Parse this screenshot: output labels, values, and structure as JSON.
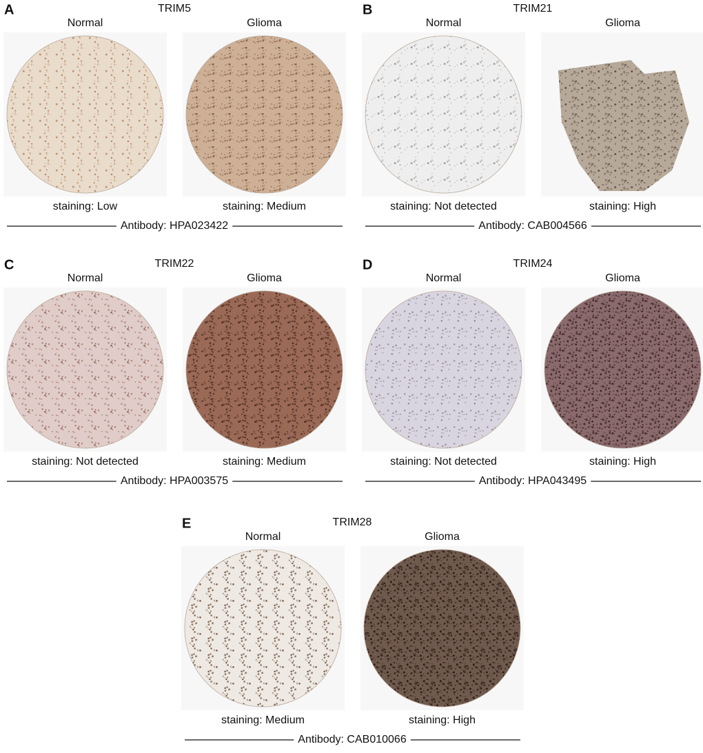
{
  "panels": [
    {
      "letter": "A",
      "gene": "TRIM5",
      "antibody": "Antibody: HPA023422",
      "normal": {
        "label": "Normal",
        "staining": "staining: Low"
      },
      "glioma": {
        "label": "Glioma",
        "staining": "staining: Medium"
      }
    },
    {
      "letter": "B",
      "gene": "TRIM21",
      "antibody": "Antibody: CAB004566",
      "normal": {
        "label": "Normal",
        "staining": "staining: Not detected"
      },
      "glioma": {
        "label": "Glioma",
        "staining": "staining: High"
      }
    },
    {
      "letter": "C",
      "gene": "TRIM22",
      "antibody": "Antibody: HPA003575",
      "normal": {
        "label": "Normal",
        "staining": "staining: Not detected"
      },
      "glioma": {
        "label": "Glioma",
        "staining": "staining: Medium"
      }
    },
    {
      "letter": "D",
      "gene": "TRIM24",
      "antibody": "Antibody: HPA043495",
      "normal": {
        "label": "Normal",
        "staining": "staining: Not detected"
      },
      "glioma": {
        "label": "Glioma",
        "staining": "staining: High"
      }
    },
    {
      "letter": "E",
      "gene": "TRIM28",
      "antibody": "Antibody: CAB010066",
      "normal": {
        "label": "Normal",
        "staining": "staining: Medium"
      },
      "glioma": {
        "label": "Glioma",
        "staining": "staining: High"
      }
    }
  ]
}
